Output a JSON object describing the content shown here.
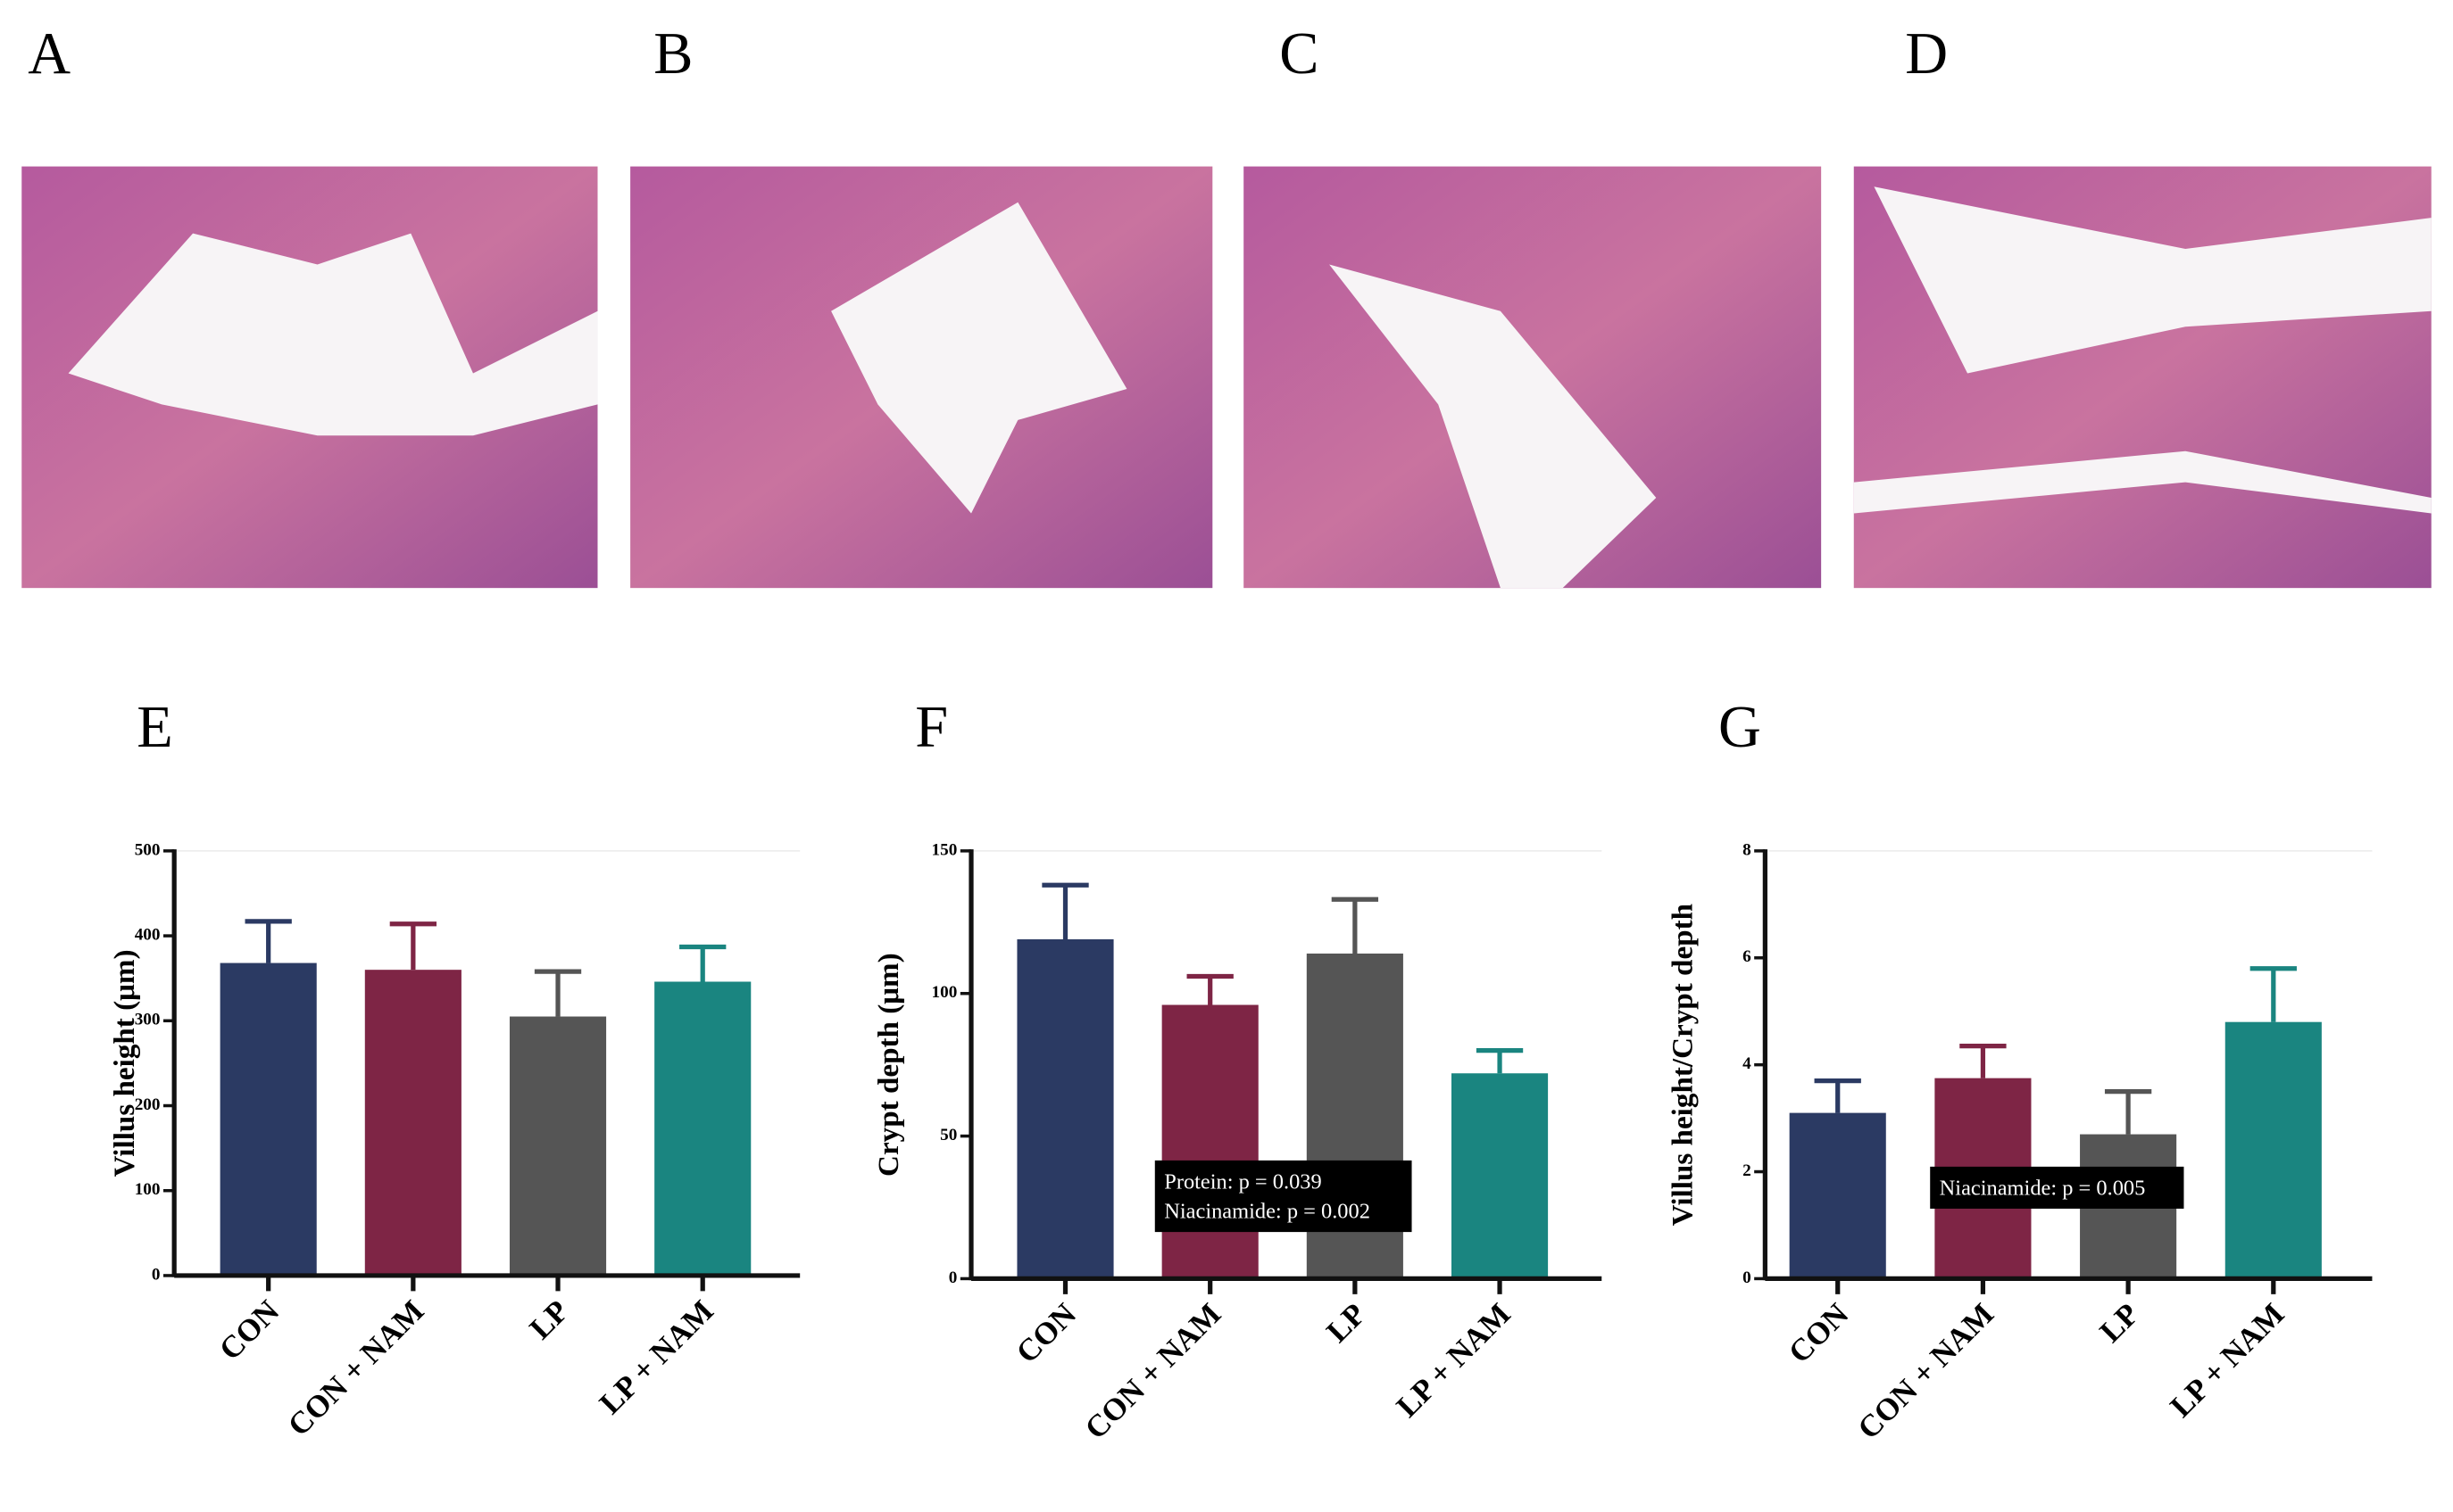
{
  "panels": [
    "A",
    "B",
    "C",
    "D"
  ],
  "chart_data": [
    {
      "type": "bar",
      "panel_label": "E",
      "y_label": "Villus height (μm)",
      "categories": [
        "CON",
        "CON + NAM",
        "LP",
        "LP + NAM"
      ],
      "values": [
        368,
        360,
        305,
        346
      ],
      "errors": [
        49,
        54,
        53,
        41
      ],
      "colors": [
        "#2b3a63",
        "#7e2545",
        "#555555",
        "#1a8580"
      ],
      "ylim": [
        0,
        500
      ],
      "yticks": [
        0,
        100,
        200,
        300,
        400,
        500
      ]
    },
    {
      "type": "bar",
      "panel_label": "F",
      "y_label": "Crypt depth (μm)",
      "categories": [
        "CON",
        "CON + NAM",
        "LP",
        "LP + NAM"
      ],
      "values": [
        119,
        96,
        114,
        72
      ],
      "errors": [
        19,
        10,
        19,
        8
      ],
      "colors": [
        "#2b3a63",
        "#7e2545",
        "#555555",
        "#1a8580"
      ],
      "ylim": [
        0,
        150
      ],
      "yticks": [
        0,
        50,
        100,
        150
      ],
      "annotations": [
        "Protein: p = 0.039",
        "Niacinamide: p = 0.002"
      ]
    },
    {
      "type": "bar",
      "panel_label": "G",
      "y_label": "Villus height/Crypt depth",
      "categories": [
        "CON",
        "CON + NAM",
        "LP",
        "LP + NAM"
      ],
      "values": [
        3.1,
        3.75,
        2.7,
        4.8
      ],
      "errors": [
        0.6,
        0.6,
        0.8,
        1.0
      ],
      "colors": [
        "#2b3a63",
        "#7e2545",
        "#555555",
        "#1a8580"
      ],
      "ylim": [
        0,
        8
      ],
      "yticks": [
        0,
        2,
        4,
        6,
        8
      ],
      "annotations": [
        "Niacinamide: p = 0.005"
      ]
    }
  ]
}
